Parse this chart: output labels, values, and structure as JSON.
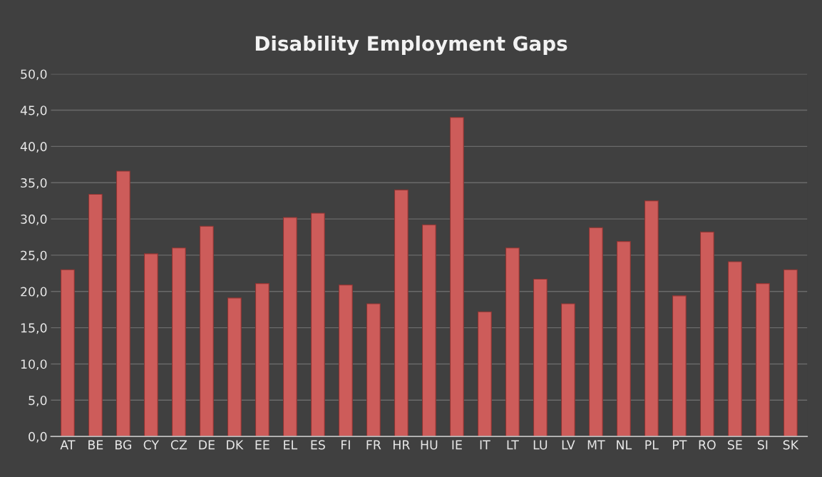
{
  "chart_data": {
    "type": "bar",
    "title": "Disability Employment Gaps",
    "categories": [
      "AT",
      "BE",
      "BG",
      "CY",
      "CZ",
      "DE",
      "DK",
      "EE",
      "EL",
      "ES",
      "FI",
      "FR",
      "HR",
      "HU",
      "IE",
      "IT",
      "LT",
      "LU",
      "LV",
      "MT",
      "NL",
      "PL",
      "PT",
      "RO",
      "SE",
      "SI",
      "SK"
    ],
    "values": [
      23.0,
      33.4,
      36.6,
      25.2,
      26.0,
      29.0,
      19.1,
      21.1,
      30.2,
      30.8,
      20.9,
      18.3,
      34.0,
      29.2,
      44.0,
      17.2,
      26.0,
      21.7,
      18.3,
      28.8,
      26.9,
      32.5,
      19.4,
      28.2,
      24.1,
      21.1,
      23.0
    ],
    "color": "#cd5c5a",
    "ylim": [
      0,
      50
    ],
    "yticks": [
      {
        "value": 0,
        "label": "0,0"
      },
      {
        "value": 5,
        "label": "5,0"
      },
      {
        "value": 10,
        "label": "10,0"
      },
      {
        "value": 15,
        "label": "15,0"
      },
      {
        "value": 20,
        "label": "20,0"
      },
      {
        "value": 25,
        "label": "25,0"
      },
      {
        "value": 30,
        "label": "30,0"
      },
      {
        "value": 35,
        "label": "35,0"
      },
      {
        "value": 40,
        "label": "40,0"
      },
      {
        "value": 45,
        "label": "45,0"
      },
      {
        "value": 50,
        "label": "50,0"
      }
    ],
    "grid": "y",
    "legend": false
  }
}
